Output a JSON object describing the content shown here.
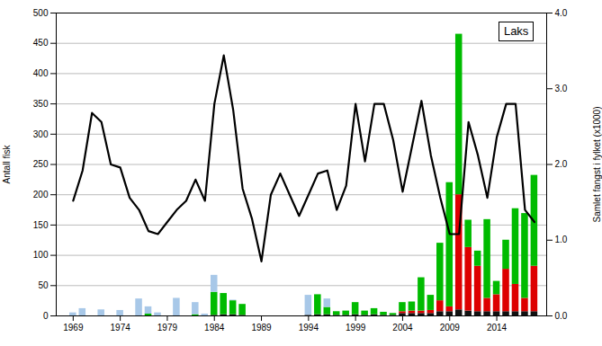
{
  "chart_data": {
    "type": "bar",
    "title": "Laks",
    "x": [
      1969,
      1970,
      1971,
      1972,
      1973,
      1974,
      1975,
      1976,
      1977,
      1978,
      1979,
      1980,
      1981,
      1982,
      1983,
      1984,
      1985,
      1986,
      1987,
      1988,
      1989,
      1990,
      1991,
      1992,
      1993,
      1994,
      1995,
      1996,
      1997,
      1998,
      1999,
      2000,
      2001,
      2002,
      2003,
      2004,
      2005,
      2006,
      2007,
      2008,
      2009,
      2010,
      2011,
      2012,
      2013,
      2014,
      2015,
      2016,
      2017,
      2018
    ],
    "xlim": [
      1967.2,
      2019.3
    ],
    "xticks": [
      1969,
      1974,
      1979,
      1984,
      1989,
      1994,
      1999,
      2004,
      2009,
      2014
    ],
    "ylabel": "Antall fisk",
    "ylim": [
      0,
      500
    ],
    "yticks": [
      0,
      50,
      100,
      150,
      200,
      250,
      300,
      350,
      400,
      450,
      500
    ],
    "y2label": "Samlet fangst i fylket (x1000)",
    "y2lim": [
      0,
      4
    ],
    "y2ticks": [
      0,
      1,
      2,
      3,
      4
    ],
    "stacked": true,
    "grid": true,
    "series": [
      {
        "type": "bar",
        "color": "#111111",
        "values": [
          0,
          0,
          0,
          0,
          0,
          0,
          0,
          0,
          0,
          0,
          0,
          0,
          0,
          0,
          0,
          1,
          2,
          2,
          1,
          0,
          0,
          0,
          0,
          0,
          0,
          1,
          2,
          2,
          1,
          1,
          2,
          1,
          2,
          1,
          1,
          4,
          4,
          4,
          4,
          7,
          7,
          10,
          8,
          7,
          7,
          7,
          7,
          7,
          7,
          7
        ]
      },
      {
        "type": "bar",
        "color": "#dd0000",
        "values": [
          0,
          0,
          0,
          0,
          0,
          0,
          0,
          0,
          0,
          0,
          0,
          0,
          0,
          0,
          0,
          0,
          0,
          0,
          0,
          0,
          0,
          0,
          0,
          0,
          0,
          0,
          0,
          0,
          0,
          0,
          0,
          0,
          0,
          0,
          0,
          3,
          4,
          4,
          5,
          18,
          8,
          190,
          105,
          75,
          22,
          28,
          70,
          45,
          22,
          75
        ]
      },
      {
        "type": "bar",
        "color": "#00bb00",
        "values": [
          0,
          0,
          0,
          0,
          0,
          0,
          0,
          0,
          3,
          0,
          0,
          0,
          0,
          2,
          0,
          38,
          35,
          23,
          18,
          0,
          0,
          0,
          0,
          0,
          0,
          0,
          33,
          12,
          6,
          7,
          20,
          7,
          10,
          5,
          3,
          15,
          15,
          55,
          25,
          95,
          205,
          265,
          45,
          25,
          130,
          22,
          48,
          125,
          140,
          150
        ]
      },
      {
        "type": "bar",
        "color": "#a8c8e8",
        "values": [
          5,
          12,
          0,
          10,
          0,
          9,
          0,
          28,
          12,
          5,
          0,
          29,
          0,
          20,
          3,
          28,
          0,
          1,
          0,
          0,
          0,
          0,
          0,
          0,
          0,
          33,
          0,
          14,
          0,
          0,
          0,
          0,
          0,
          0,
          0,
          0,
          0,
          0,
          0,
          0,
          0,
          0,
          0,
          0,
          0,
          0,
          0,
          0,
          0,
          0
        ]
      },
      {
        "type": "line",
        "color": "#000000",
        "values": [
          190,
          240,
          335,
          320,
          250,
          245,
          195,
          175,
          140,
          135,
          155,
          175,
          190,
          225,
          190,
          350,
          430,
          340,
          210,
          160,
          90,
          200,
          235,
          200,
          165,
          200,
          235,
          240,
          175,
          215,
          350,
          255,
          350,
          350,
          290,
          205,
          280,
          355,
          265,
          195,
          135,
          135,
          320,
          265,
          195,
          295,
          350,
          350,
          175,
          155
        ]
      }
    ]
  }
}
